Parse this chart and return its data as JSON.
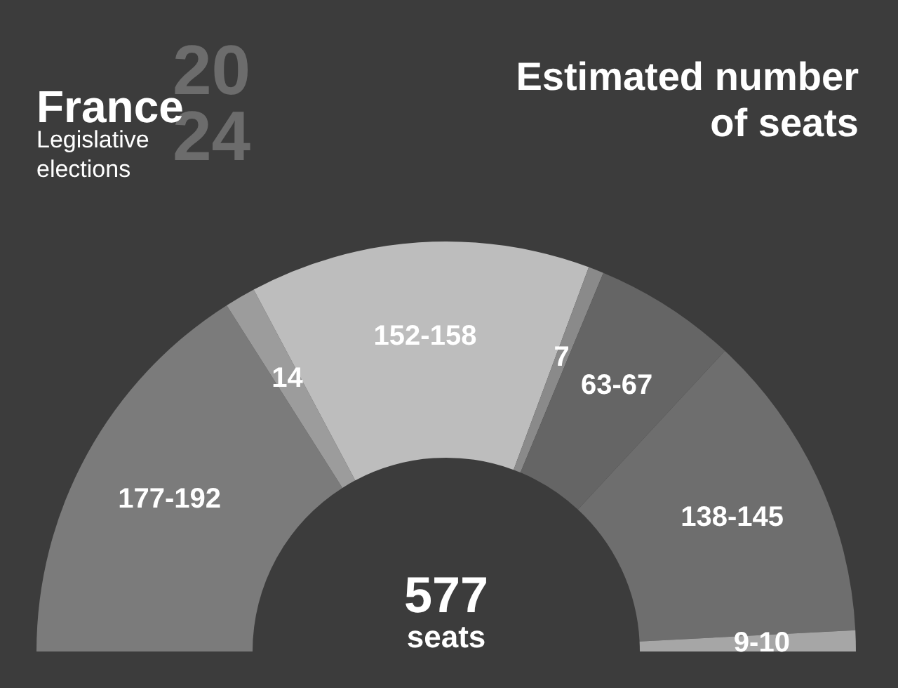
{
  "chart_data": {
    "type": "donut",
    "title": "Estimated number of seats",
    "categories": [
      null,
      null,
      null,
      null,
      null,
      null,
      null
    ],
    "values": [
      184.5,
      14,
      155,
      7,
      65,
      141.5,
      9.5
    ],
    "value_labels": [
      "177-192",
      "14",
      "152-158",
      "7",
      "63-67",
      "138-145",
      "9-10"
    ],
    "colors": [
      "#7b7b7b",
      "#9c9c9c",
      "#bdbdbd",
      "#8a8a8a",
      "#656565",
      "#6e6e6e",
      "#a6a6a6"
    ],
    "annotations": [
      "France",
      "Legislative elections",
      "2024",
      "577",
      "seats"
    ]
  }
}
